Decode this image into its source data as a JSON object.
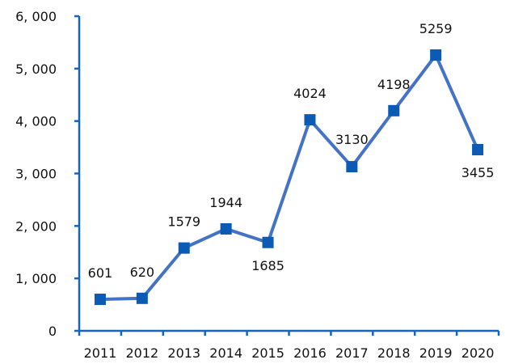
{
  "chart_data": {
    "type": "line",
    "title": "",
    "xlabel": "",
    "ylabel": "",
    "categories": [
      "2011",
      "2012",
      "2013",
      "2014",
      "2015",
      "2016",
      "2017",
      "2018",
      "2019",
      "2020"
    ],
    "series": [
      {
        "values": [
          601,
          620,
          1579,
          1944,
          1685,
          4024,
          3130,
          4198,
          5259,
          3455
        ],
        "data_labels": [
          "601",
          "620",
          "1579",
          "1944",
          "1685",
          "4024",
          "3130",
          "4198",
          "5259",
          "3455"
        ]
      }
    ],
    "ylim": [
      0,
      6000
    ],
    "y_ticks": [
      0,
      1000,
      2000,
      3000,
      4000,
      5000,
      6000
    ],
    "y_tick_labels": [
      "0",
      "1, 000",
      "2, 000",
      "3, 000",
      "4, 000",
      "5, 000",
      "6, 000"
    ],
    "grid": false,
    "legend": "none",
    "colors": {
      "series": "#4472C4",
      "marker": "#0B5BB5",
      "axis": "#1565C0"
    }
  }
}
